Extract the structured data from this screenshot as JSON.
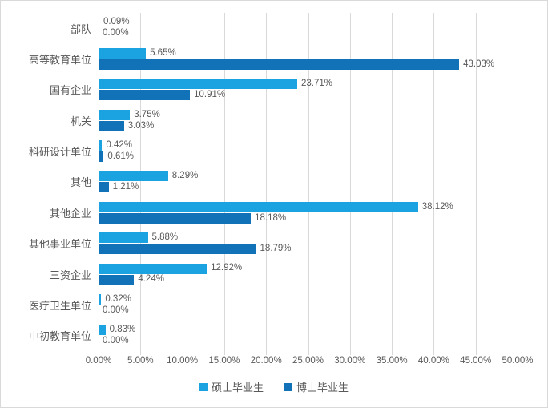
{
  "chart_data": {
    "type": "bar",
    "orientation": "horizontal",
    "title": "",
    "categories": [
      "部队",
      "高等教育单位",
      "国有企业",
      "机关",
      "科研设计单位",
      "其他",
      "其他企业",
      "其他事业单位",
      "三资企业",
      "医疗卫生单位",
      "中初教育单位"
    ],
    "series": [
      {
        "name": "硕士毕业生",
        "color": "#1BA3E1",
        "values": [
          0.09,
          5.65,
          23.71,
          3.75,
          0.42,
          8.29,
          38.12,
          5.88,
          12.92,
          0.32,
          0.83
        ]
      },
      {
        "name": "博士毕业生",
        "color": "#1272B8",
        "values": [
          0.0,
          43.03,
          10.91,
          3.03,
          0.61,
          1.21,
          18.18,
          18.79,
          4.24,
          0.0,
          0.0
        ]
      }
    ],
    "x_ticks": [
      "0.00%",
      "5.00%",
      "10.00%",
      "15.00%",
      "20.00%",
      "25.00%",
      "30.00%",
      "35.00%",
      "40.00%",
      "45.00%",
      "50.00%"
    ],
    "xlim": [
      0,
      50
    ],
    "grid": true,
    "legend_position": "bottom",
    "value_label_format": "0.00%"
  },
  "colors": {
    "grid": "#d9d9d9",
    "text": "#595959",
    "background": "#ffffff",
    "border": "#d9d9d9"
  }
}
